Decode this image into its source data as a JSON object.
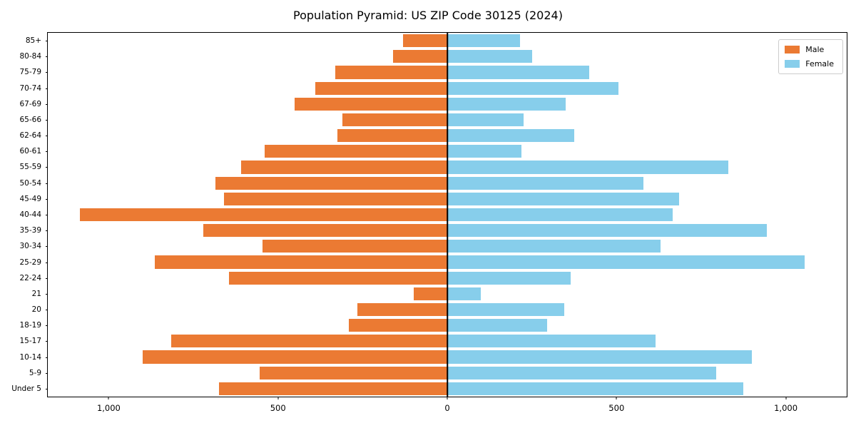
{
  "chart_data": {
    "type": "bar",
    "orientation": "horizontal-pyramid",
    "title": "Population Pyramid: US ZIP Code 30125 (2024)",
    "categories": [
      "85+",
      "80-84",
      "75-79",
      "70-74",
      "67-69",
      "65-66",
      "62-64",
      "60-61",
      "55-59",
      "50-54",
      "45-49",
      "40-44",
      "35-39",
      "30-34",
      "25-29",
      "22-24",
      "21",
      "20",
      "18-19",
      "15-17",
      "10-14",
      "5-9",
      "Under 5"
    ],
    "series": [
      {
        "name": "Male",
        "color": "#EB7A33",
        "values": [
          130,
          160,
          330,
          390,
          450,
          310,
          325,
          540,
          610,
          685,
          660,
          1085,
          720,
          545,
          865,
          645,
          100,
          265,
          290,
          815,
          900,
          555,
          675
        ]
      },
      {
        "name": "Female",
        "color": "#87CEEB",
        "values": [
          215,
          250,
          420,
          505,
          350,
          225,
          375,
          220,
          830,
          580,
          685,
          665,
          945,
          630,
          1055,
          365,
          100,
          345,
          295,
          615,
          900,
          795,
          875
        ]
      }
    ],
    "xlim": [
      -1180,
      1180
    ],
    "xticks": [
      {
        "value": -1000,
        "label": "1,000"
      },
      {
        "value": -500,
        "label": "500"
      },
      {
        "value": 0,
        "label": "0"
      },
      {
        "value": 500,
        "label": "500"
      },
      {
        "value": 1000,
        "label": "1,000"
      }
    ],
    "xlabel": "",
    "ylabel": "",
    "grid": false,
    "legend_position": "upper right",
    "zero_line_color": "#000000"
  }
}
